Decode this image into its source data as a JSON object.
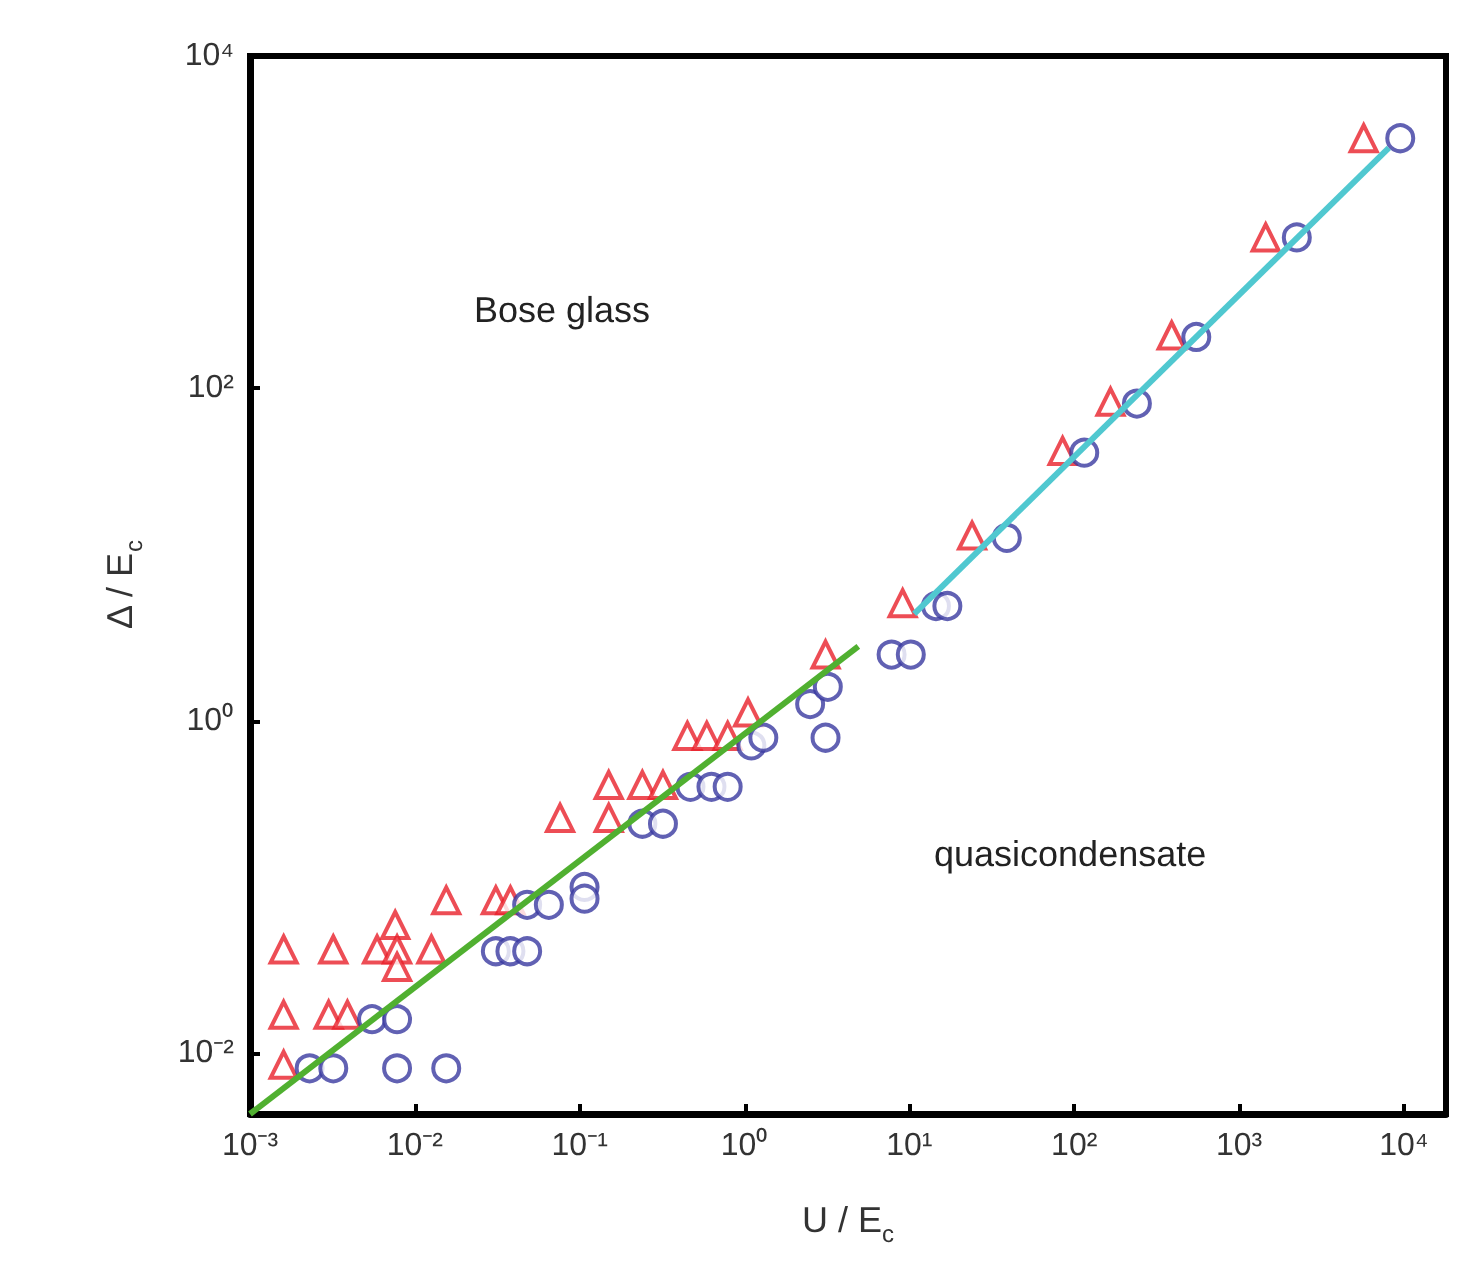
{
  "chart_data": {
    "type": "scatter",
    "xlabel": "U / E$_{c}$",
    "ylabel": "Δ / E$_{c}$",
    "log": "xy",
    "grid": false,
    "xlim": [
      0.001,
      18000
    ],
    "ylim": [
      0.0043,
      10000
    ],
    "xticks": [
      {
        "value": 0.001,
        "label": "10⁻³"
      },
      {
        "value": 0.01,
        "label": "10⁻²"
      },
      {
        "value": 0.1,
        "label": "10⁻¹"
      },
      {
        "value": 1,
        "label": "10⁰"
      },
      {
        "value": 10,
        "label": "10¹"
      },
      {
        "value": 100,
        "label": "10²"
      },
      {
        "value": 1000,
        "label": "10³"
      },
      {
        "value": 10000,
        "label": "10⁴"
      }
    ],
    "yticks": [
      {
        "value": 0.01,
        "label": "10⁻²"
      },
      {
        "value": 1,
        "label": "10⁰"
      },
      {
        "value": 100,
        "label": "10²"
      },
      {
        "value": 10000,
        "label": "10⁴"
      }
    ],
    "annotations": [
      "Bose glass",
      "quasicondensate"
    ],
    "series": [
      {
        "marker": "triangle",
        "color": "#e8202a",
        "x": [
          0.0016,
          0.0032,
          0.0059,
          0.0076,
          0.0078,
          0.0078,
          0.0126,
          0.0016,
          0.003,
          0.0039,
          0.0016,
          0.0155,
          0.031,
          0.038,
          0.076,
          0.15,
          0.15,
          0.24,
          0.32,
          0.45,
          0.59,
          0.79,
          1.05,
          3.1,
          9.1,
          24,
          85,
          166,
          390,
          1450,
          5700
        ],
        "values": [
          0.042,
          0.042,
          0.042,
          0.059,
          0.042,
          0.033,
          0.042,
          0.017,
          0.017,
          0.017,
          0.0085,
          0.083,
          0.083,
          0.083,
          0.26,
          0.26,
          0.41,
          0.41,
          0.41,
          0.81,
          0.81,
          0.81,
          1.12,
          2.5,
          5.1,
          13,
          42,
          83,
          208,
          810,
          3200
        ]
      },
      {
        "marker": "circle",
        "color": "#3a3aa0",
        "x": [
          0.0023,
          0.0032,
          0.0078,
          0.0155,
          0.0055,
          0.0078,
          0.031,
          0.038,
          0.048,
          0.048,
          0.065,
          0.107,
          0.107,
          0.24,
          0.32,
          0.47,
          0.63,
          0.79,
          1.1,
          1.3,
          2.5,
          3.2,
          3.1,
          7.8,
          10.2,
          14.5,
          17,
          39,
          115,
          240,
          550,
          2240,
          9500
        ],
        "values": [
          0.0081,
          0.0081,
          0.0081,
          0.0081,
          0.016,
          0.016,
          0.041,
          0.041,
          0.041,
          0.078,
          0.078,
          0.1,
          0.085,
          0.24,
          0.24,
          0.4,
          0.4,
          0.4,
          0.71,
          0.79,
          1.26,
          1.6,
          0.79,
          2.5,
          2.5,
          4.9,
          4.9,
          12.6,
          41,
          81,
          204,
          810,
          3200
        ]
      },
      {
        "type": "line",
        "marker": "none",
        "color": "#50b030",
        "x": [
          0.001,
          4.9
        ],
        "values": [
          0.0043,
          2.8
        ]
      },
      {
        "type": "line",
        "marker": "none",
        "color": "#50c8d0",
        "x": [
          10.7,
          8100
        ],
        "values": [
          4.4,
          2800
        ]
      }
    ]
  }
}
